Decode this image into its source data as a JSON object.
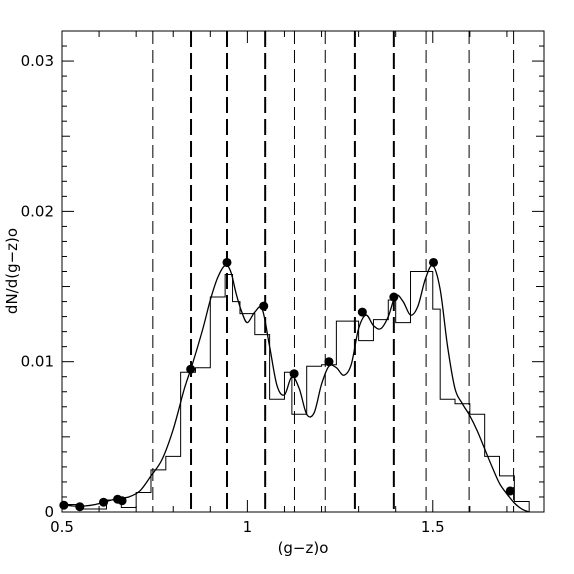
{
  "chart_data": {
    "type": "line",
    "xlabel": "(g−z)o",
    "ylabel": "dN/d(g−z)o",
    "xlim": [
      0.5,
      1.8
    ],
    "ylim": [
      0,
      0.032
    ],
    "grid": false,
    "x_ticks": [
      {
        "value": 0.5,
        "label": "0.5"
      },
      {
        "value": 1.0,
        "label": "1"
      },
      {
        "value": 1.5,
        "label": "1.5"
      }
    ],
    "y_ticks": [
      {
        "value": 0,
        "label": "0"
      },
      {
        "value": 0.01,
        "label": "0.01"
      },
      {
        "value": 0.02,
        "label": "0.02"
      },
      {
        "value": 0.03,
        "label": "0.03"
      }
    ],
    "histogram": {
      "name": "",
      "bin_edges": [
        0.5,
        0.54,
        0.58,
        0.62,
        0.66,
        0.7,
        0.74,
        0.78,
        0.82,
        0.86,
        0.9,
        0.94,
        0.96,
        0.98,
        1.02,
        1.06,
        1.1,
        1.12,
        1.16,
        1.2,
        1.24,
        1.3,
        1.34,
        1.38,
        1.4,
        1.44,
        1.48,
        1.5,
        1.52,
        1.56,
        1.6,
        1.64,
        1.68,
        1.72,
        1.76
      ],
      "counts": [
        0.0005,
        0.0002,
        0.0002,
        0.0008,
        0.0003,
        0.0013,
        0.0028,
        0.0037,
        0.0093,
        0.0096,
        0.0143,
        0.0158,
        0.014,
        0.0132,
        0.0118,
        0.0075,
        0.0093,
        0.0065,
        0.0097,
        0.0098,
        0.0127,
        0.0114,
        0.0128,
        0.0141,
        0.0126,
        0.016,
        0.016,
        0.0135,
        0.0075,
        0.0072,
        0.0065,
        0.0037,
        0.0024,
        0.0007
      ]
    },
    "smooth_curve": {
      "name": "",
      "x": [
        0.5,
        0.53,
        0.56,
        0.59,
        0.62,
        0.65,
        0.68,
        0.71,
        0.74,
        0.77,
        0.8,
        0.83,
        0.85,
        0.88,
        0.9,
        0.92,
        0.94,
        0.955,
        0.97,
        0.985,
        1.0,
        1.02,
        1.04,
        1.06,
        1.08,
        1.1,
        1.12,
        1.14,
        1.16,
        1.18,
        1.2,
        1.22,
        1.24,
        1.26,
        1.28,
        1.3,
        1.32,
        1.34,
        1.36,
        1.38,
        1.4,
        1.42,
        1.44,
        1.46,
        1.48,
        1.5,
        1.52,
        1.54,
        1.56,
        1.58,
        1.6,
        1.62,
        1.64,
        1.66,
        1.68,
        1.7,
        1.72,
        1.74,
        1.76
      ],
      "y": [
        0.0005,
        0.0004,
        0.0004,
        0.0005,
        0.0007,
        0.0009,
        0.001,
        0.0014,
        0.0024,
        0.0035,
        0.0055,
        0.0082,
        0.0097,
        0.0122,
        0.0141,
        0.0156,
        0.0164,
        0.016,
        0.0145,
        0.0133,
        0.0126,
        0.0133,
        0.0135,
        0.011,
        0.0084,
        0.0078,
        0.009,
        0.0082,
        0.0065,
        0.0066,
        0.0085,
        0.0097,
        0.0096,
        0.0091,
        0.0098,
        0.0122,
        0.0131,
        0.0124,
        0.0122,
        0.013,
        0.0144,
        0.014,
        0.0131,
        0.0137,
        0.0155,
        0.0164,
        0.0148,
        0.011,
        0.0082,
        0.0072,
        0.0064,
        0.0054,
        0.0042,
        0.003,
        0.0019,
        0.0012,
        0.0006,
        0.0002,
        0.0
      ]
    },
    "peaks": {
      "name": "",
      "x": [
        0.505,
        0.548,
        0.612,
        0.65,
        0.662,
        0.847,
        0.945,
        1.044,
        1.126,
        1.22,
        1.31,
        1.395,
        1.502,
        1.709
      ],
      "y": [
        0.00045,
        0.00035,
        0.00065,
        0.00085,
        0.00075,
        0.0095,
        0.0166,
        0.0137,
        0.0092,
        0.01,
        0.0133,
        0.0143,
        0.0166,
        0.0014
      ]
    },
    "boundaries": [
      {
        "x": 0.745,
        "style": "thin"
      },
      {
        "x": 0.848,
        "style": "thick"
      },
      {
        "x": 0.945,
        "style": "thick"
      },
      {
        "x": 1.048,
        "style": "thick"
      },
      {
        "x": 1.127,
        "style": "thin"
      },
      {
        "x": 1.21,
        "style": "thin"
      },
      {
        "x": 1.29,
        "style": "thick"
      },
      {
        "x": 1.395,
        "style": "thick"
      },
      {
        "x": 1.482,
        "style": "thin"
      },
      {
        "x": 1.598,
        "style": "thin"
      },
      {
        "x": 1.718,
        "style": "thin"
      }
    ]
  }
}
